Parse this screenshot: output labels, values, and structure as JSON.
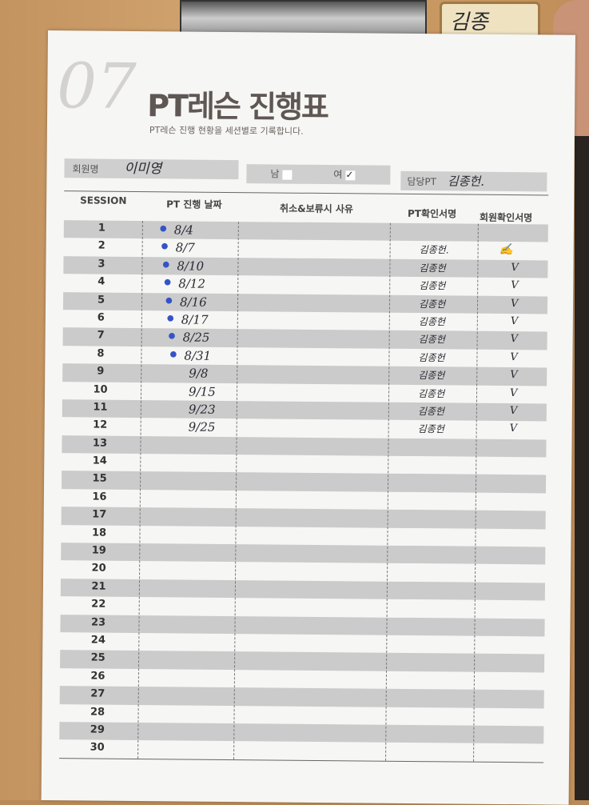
{
  "nametag": "김종",
  "form": {
    "number": "07",
    "title": "PT레슨 진행표",
    "subtitle": "PT레슨 진행 현황을 세션별로 기록합니다.",
    "member_label": "회원명",
    "member_name": "이미영",
    "male_label": "남",
    "female_label": "여",
    "gender_selected": "여",
    "female_check": "✓",
    "trainer_label": "담당PT",
    "trainer_name": "김종헌."
  },
  "table": {
    "headers": [
      "SESSION",
      "PT 진행 날짜",
      "취소&보류시 사유",
      "PT확인서명",
      "회원확인서명"
    ],
    "rows": [
      {
        "session": "1",
        "date": "8/4",
        "reason": "",
        "pt_sign": "",
        "member_sign": ""
      },
      {
        "session": "2",
        "date": "8/7",
        "reason": "",
        "pt_sign": "김종헌.",
        "member_sign": "(signature)"
      },
      {
        "session": "3",
        "date": "8/10",
        "reason": "",
        "pt_sign": "김종헌",
        "member_sign": "V"
      },
      {
        "session": "4",
        "date": "8/12",
        "reason": "",
        "pt_sign": "김종헌",
        "member_sign": "V"
      },
      {
        "session": "5",
        "date": "8/16",
        "reason": "",
        "pt_sign": "김종헌",
        "member_sign": "V"
      },
      {
        "session": "6",
        "date": "8/17",
        "reason": "",
        "pt_sign": "김종헌",
        "member_sign": "V"
      },
      {
        "session": "7",
        "date": "8/25",
        "reason": "",
        "pt_sign": "김종헌",
        "member_sign": "V"
      },
      {
        "session": "8",
        "date": "8/31",
        "reason": "",
        "pt_sign": "김종헌",
        "member_sign": "V"
      },
      {
        "session": "9",
        "date": "9/8",
        "reason": "",
        "pt_sign": "김종헌",
        "member_sign": "V"
      },
      {
        "session": "10",
        "date": "9/15",
        "reason": "",
        "pt_sign": "김종헌",
        "member_sign": "V"
      },
      {
        "session": "11",
        "date": "9/23",
        "reason": "",
        "pt_sign": "김종헌",
        "member_sign": "V"
      },
      {
        "session": "12",
        "date": "9/25",
        "reason": "",
        "pt_sign": "김종헌",
        "member_sign": "V"
      },
      {
        "session": "13",
        "date": "",
        "reason": "",
        "pt_sign": "",
        "member_sign": ""
      },
      {
        "session": "14",
        "date": "",
        "reason": "",
        "pt_sign": "",
        "member_sign": ""
      },
      {
        "session": "15",
        "date": "",
        "reason": "",
        "pt_sign": "",
        "member_sign": ""
      },
      {
        "session": "16",
        "date": "",
        "reason": "",
        "pt_sign": "",
        "member_sign": ""
      },
      {
        "session": "17",
        "date": "",
        "reason": "",
        "pt_sign": "",
        "member_sign": ""
      },
      {
        "session": "18",
        "date": "",
        "reason": "",
        "pt_sign": "",
        "member_sign": ""
      },
      {
        "session": "19",
        "date": "",
        "reason": "",
        "pt_sign": "",
        "member_sign": ""
      },
      {
        "session": "20",
        "date": "",
        "reason": "",
        "pt_sign": "",
        "member_sign": ""
      },
      {
        "session": "21",
        "date": "",
        "reason": "",
        "pt_sign": "",
        "member_sign": ""
      },
      {
        "session": "22",
        "date": "",
        "reason": "",
        "pt_sign": "",
        "member_sign": ""
      },
      {
        "session": "23",
        "date": "",
        "reason": "",
        "pt_sign": "",
        "member_sign": ""
      },
      {
        "session": "24",
        "date": "",
        "reason": "",
        "pt_sign": "",
        "member_sign": ""
      },
      {
        "session": "25",
        "date": "",
        "reason": "",
        "pt_sign": "",
        "member_sign": ""
      },
      {
        "session": "26",
        "date": "",
        "reason": "",
        "pt_sign": "",
        "member_sign": ""
      },
      {
        "session": "27",
        "date": "",
        "reason": "",
        "pt_sign": "",
        "member_sign": ""
      },
      {
        "session": "28",
        "date": "",
        "reason": "",
        "pt_sign": "",
        "member_sign": ""
      },
      {
        "session": "29",
        "date": "",
        "reason": "",
        "pt_sign": "",
        "member_sign": ""
      },
      {
        "session": "30",
        "date": "",
        "reason": "",
        "pt_sign": "",
        "member_sign": ""
      }
    ]
  }
}
